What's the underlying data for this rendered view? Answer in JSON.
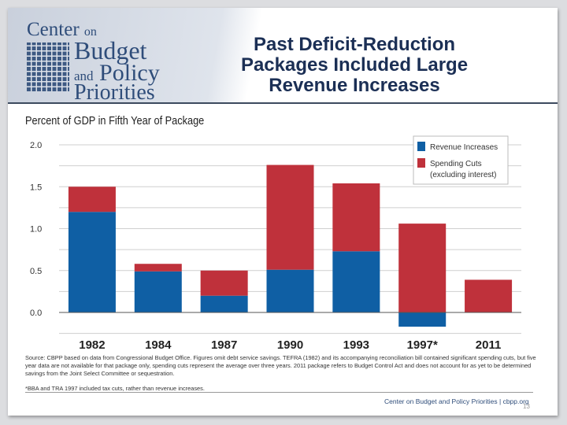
{
  "logo": {
    "line1": "Center",
    "line1b": "on",
    "line2": "Budget",
    "line3a": "and",
    "line3b": "Policy",
    "line4": "Priorities"
  },
  "title": "Past Deficit-Reduction Packages Included Large Revenue Increases",
  "chart_data": {
    "type": "bar",
    "stacked": true,
    "ylabel": "Percent of GDP in Fifth Year of Package",
    "categories": [
      "1982",
      "1984",
      "1987",
      "1990",
      "1993",
      "1997*",
      "2011"
    ],
    "series": [
      {
        "name": "Revenue Increases",
        "color": "#0f5fa4",
        "values": [
          1.2,
          0.49,
          0.2,
          0.51,
          0.73,
          -0.17,
          0
        ]
      },
      {
        "name": "Spending Cuts (excluding interest)",
        "color": "#bf313b",
        "values": [
          0.3,
          0.09,
          0.3,
          1.25,
          0.81,
          1.06,
          0.39
        ]
      }
    ],
    "ylim": [
      -0.25,
      2.0
    ],
    "yticks": [
      "2.0",
      "1.5",
      "1.0",
      "0.5",
      "0.0"
    ],
    "ytick_values": [
      2.0,
      1.5,
      1.0,
      0.5,
      0.0
    ],
    "grid": true,
    "legend_position": "top-right",
    "legend": [
      "Revenue Increases",
      "Spending Cuts",
      "(excluding interest)"
    ]
  },
  "source": "Source: CBPP based on data from Congressional Budget Office. Figures omit debt service savings. TEFRA (1982) and its accompanying reconciliation bill contained significant spending cuts, but five year data are not available for that package only, spending cuts represent the average over three years. 2011 package refers to Budget Control Act and does not account for as yet to be determined savings from the Joint Select Committee or sequestration.",
  "note": "*BBA and TRA 1997 included tax cuts, rather than revenue increases.",
  "footer": "Center on Budget and Policy Priorities | cbpp.org",
  "page_number": "13"
}
